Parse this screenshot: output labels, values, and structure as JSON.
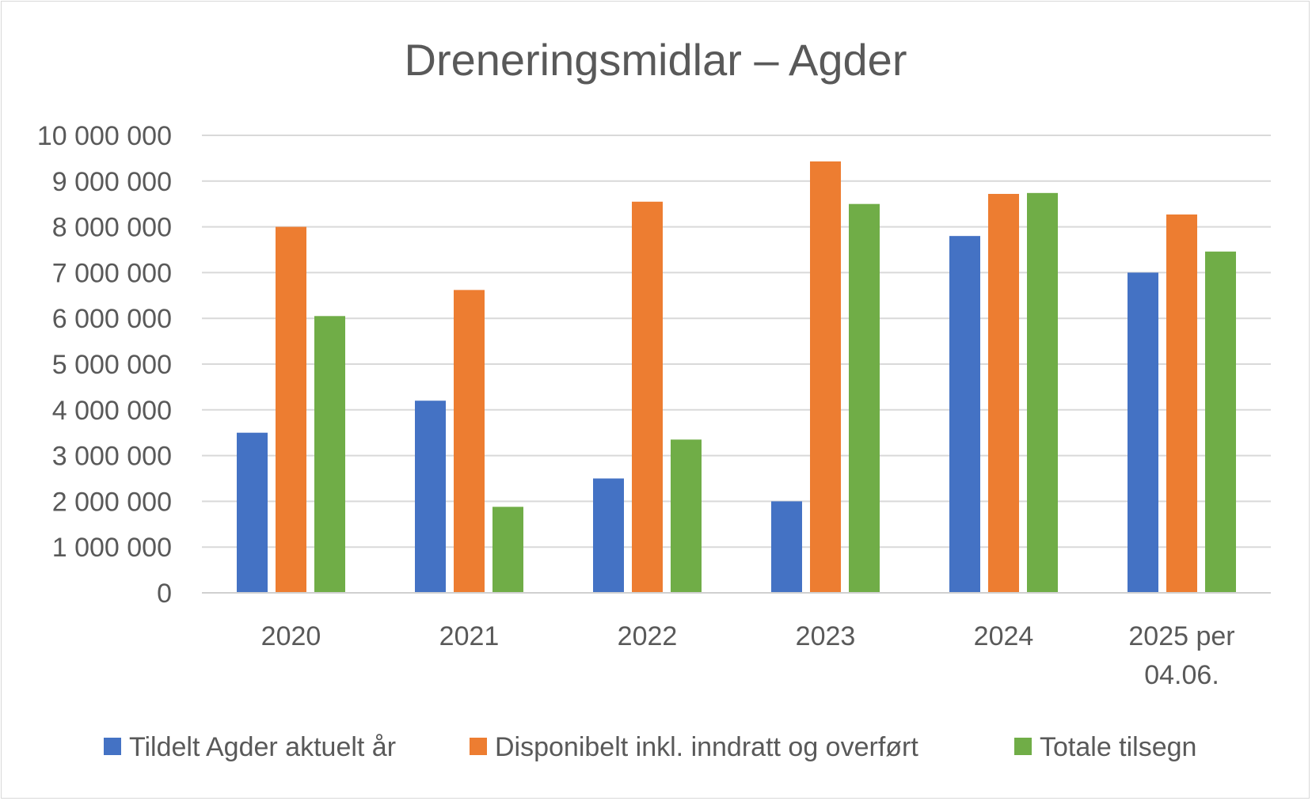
{
  "chart_data": {
    "type": "bar",
    "title": "Dreneringsmidlar – Agder",
    "xlabel": "",
    "ylabel": "",
    "ylim": [
      0,
      10000000
    ],
    "yticks": [
      0,
      1000000,
      2000000,
      3000000,
      4000000,
      5000000,
      6000000,
      7000000,
      8000000,
      9000000,
      10000000
    ],
    "ytick_labels": [
      "0",
      "1 000 000",
      "2 000 000",
      "3 000 000",
      "4 000 000",
      "5 000 000",
      "6 000 000",
      "7 000 000",
      "8 000 000",
      "9 000 000",
      "10 000 000"
    ],
    "categories": [
      "2020",
      "2021",
      "2022",
      "2023",
      "2024",
      "2025 per 04.06."
    ],
    "category_label_lines": [
      [
        "2020"
      ],
      [
        "2021"
      ],
      [
        "2022"
      ],
      [
        "2023"
      ],
      [
        "2024"
      ],
      [
        "2025 per",
        "04.06."
      ]
    ],
    "grid": true,
    "legend_position": "bottom",
    "series": [
      {
        "name": "Tildelt Agder aktuelt år",
        "color": "#4472c4",
        "values": [
          3500000,
          4200000,
          2500000,
          2000000,
          7800000,
          7000000
        ]
      },
      {
        "name": "Disponibelt inkl. inndratt og overført",
        "color": "#ed7d31",
        "values": [
          8000000,
          6620000,
          8550000,
          9430000,
          8720000,
          8270000
        ]
      },
      {
        "name": "Totale tilsegn",
        "color": "#70ad47",
        "values": [
          6050000,
          1880000,
          3350000,
          8500000,
          8740000,
          7460000
        ]
      }
    ]
  }
}
